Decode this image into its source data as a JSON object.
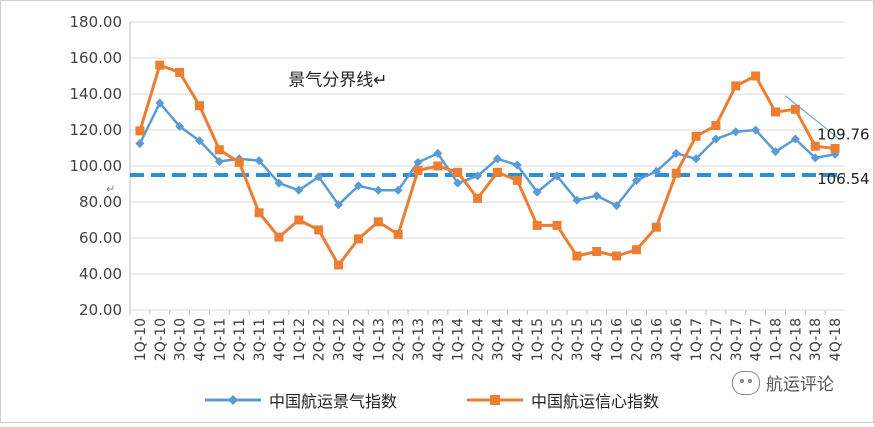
{
  "chart_data": {
    "type": "line",
    "ylim": [
      20,
      180
    ],
    "yticks": [
      "20.00",
      "40.00",
      "60.00",
      "80.00",
      "100.00",
      "120.00",
      "140.00",
      "160.00",
      "180.00"
    ],
    "categories": [
      "1Q-10",
      "2Q-10",
      "3Q-10",
      "4Q-10",
      "1Q-11",
      "2Q-11",
      "3Q-11",
      "4Q-11",
      "1Q-12",
      "2Q-12",
      "3Q-12",
      "4Q-12",
      "1Q-13",
      "2Q-13",
      "3Q-13",
      "4Q-13",
      "1Q-14",
      "2Q-14",
      "3Q-14",
      "4Q-14",
      "1Q-15",
      "2Q-15",
      "3Q-15",
      "4Q-15",
      "1Q-16",
      "2Q-16",
      "3Q-16",
      "4Q-16",
      "1Q-17",
      "2Q-17",
      "3Q-17",
      "4Q-17",
      "1Q-18",
      "2Q-18",
      "3Q-18",
      "4Q-18"
    ],
    "series": [
      {
        "name": "中国航运景气指数",
        "color": "#5B9BD5",
        "values": [
          112.5,
          135,
          122,
          114,
          102.5,
          104,
          103,
          90.5,
          86.5,
          94,
          78.5,
          89,
          86.5,
          86.5,
          102,
          107,
          90.5,
          94.5,
          104,
          100.5,
          85.5,
          94.5,
          81,
          83.5,
          78,
          92,
          97,
          107,
          104,
          115,
          119,
          120,
          108,
          115,
          104.5,
          106.54
        ]
      },
      {
        "name": "中国航运信心指数",
        "color": "#ED7D31",
        "values": [
          119.5,
          156,
          152,
          133.5,
          109,
          102,
          74,
          60.5,
          70,
          64.5,
          45,
          59.5,
          69,
          62,
          97.5,
          100,
          96.5,
          82,
          96.5,
          92,
          67,
          67,
          50,
          52.5,
          50,
          53.5,
          66,
          96,
          116.5,
          122.5,
          144.5,
          150,
          130,
          131.5,
          111,
          109.76
        ]
      }
    ],
    "boom_line": 95,
    "annotations": [
      {
        "text": "景气分界线↵",
        "x": "1Q-13",
        "y": 148
      },
      {
        "text": "109.76",
        "x": "4Q-18",
        "y": 118
      },
      {
        "text": "106.54",
        "x": "4Q-18",
        "y": 95
      },
      {
        "text": "↵",
        "x": "1Q-10",
        "y": 88
      }
    ]
  },
  "watermark": {
    "text": "航运评论"
  }
}
